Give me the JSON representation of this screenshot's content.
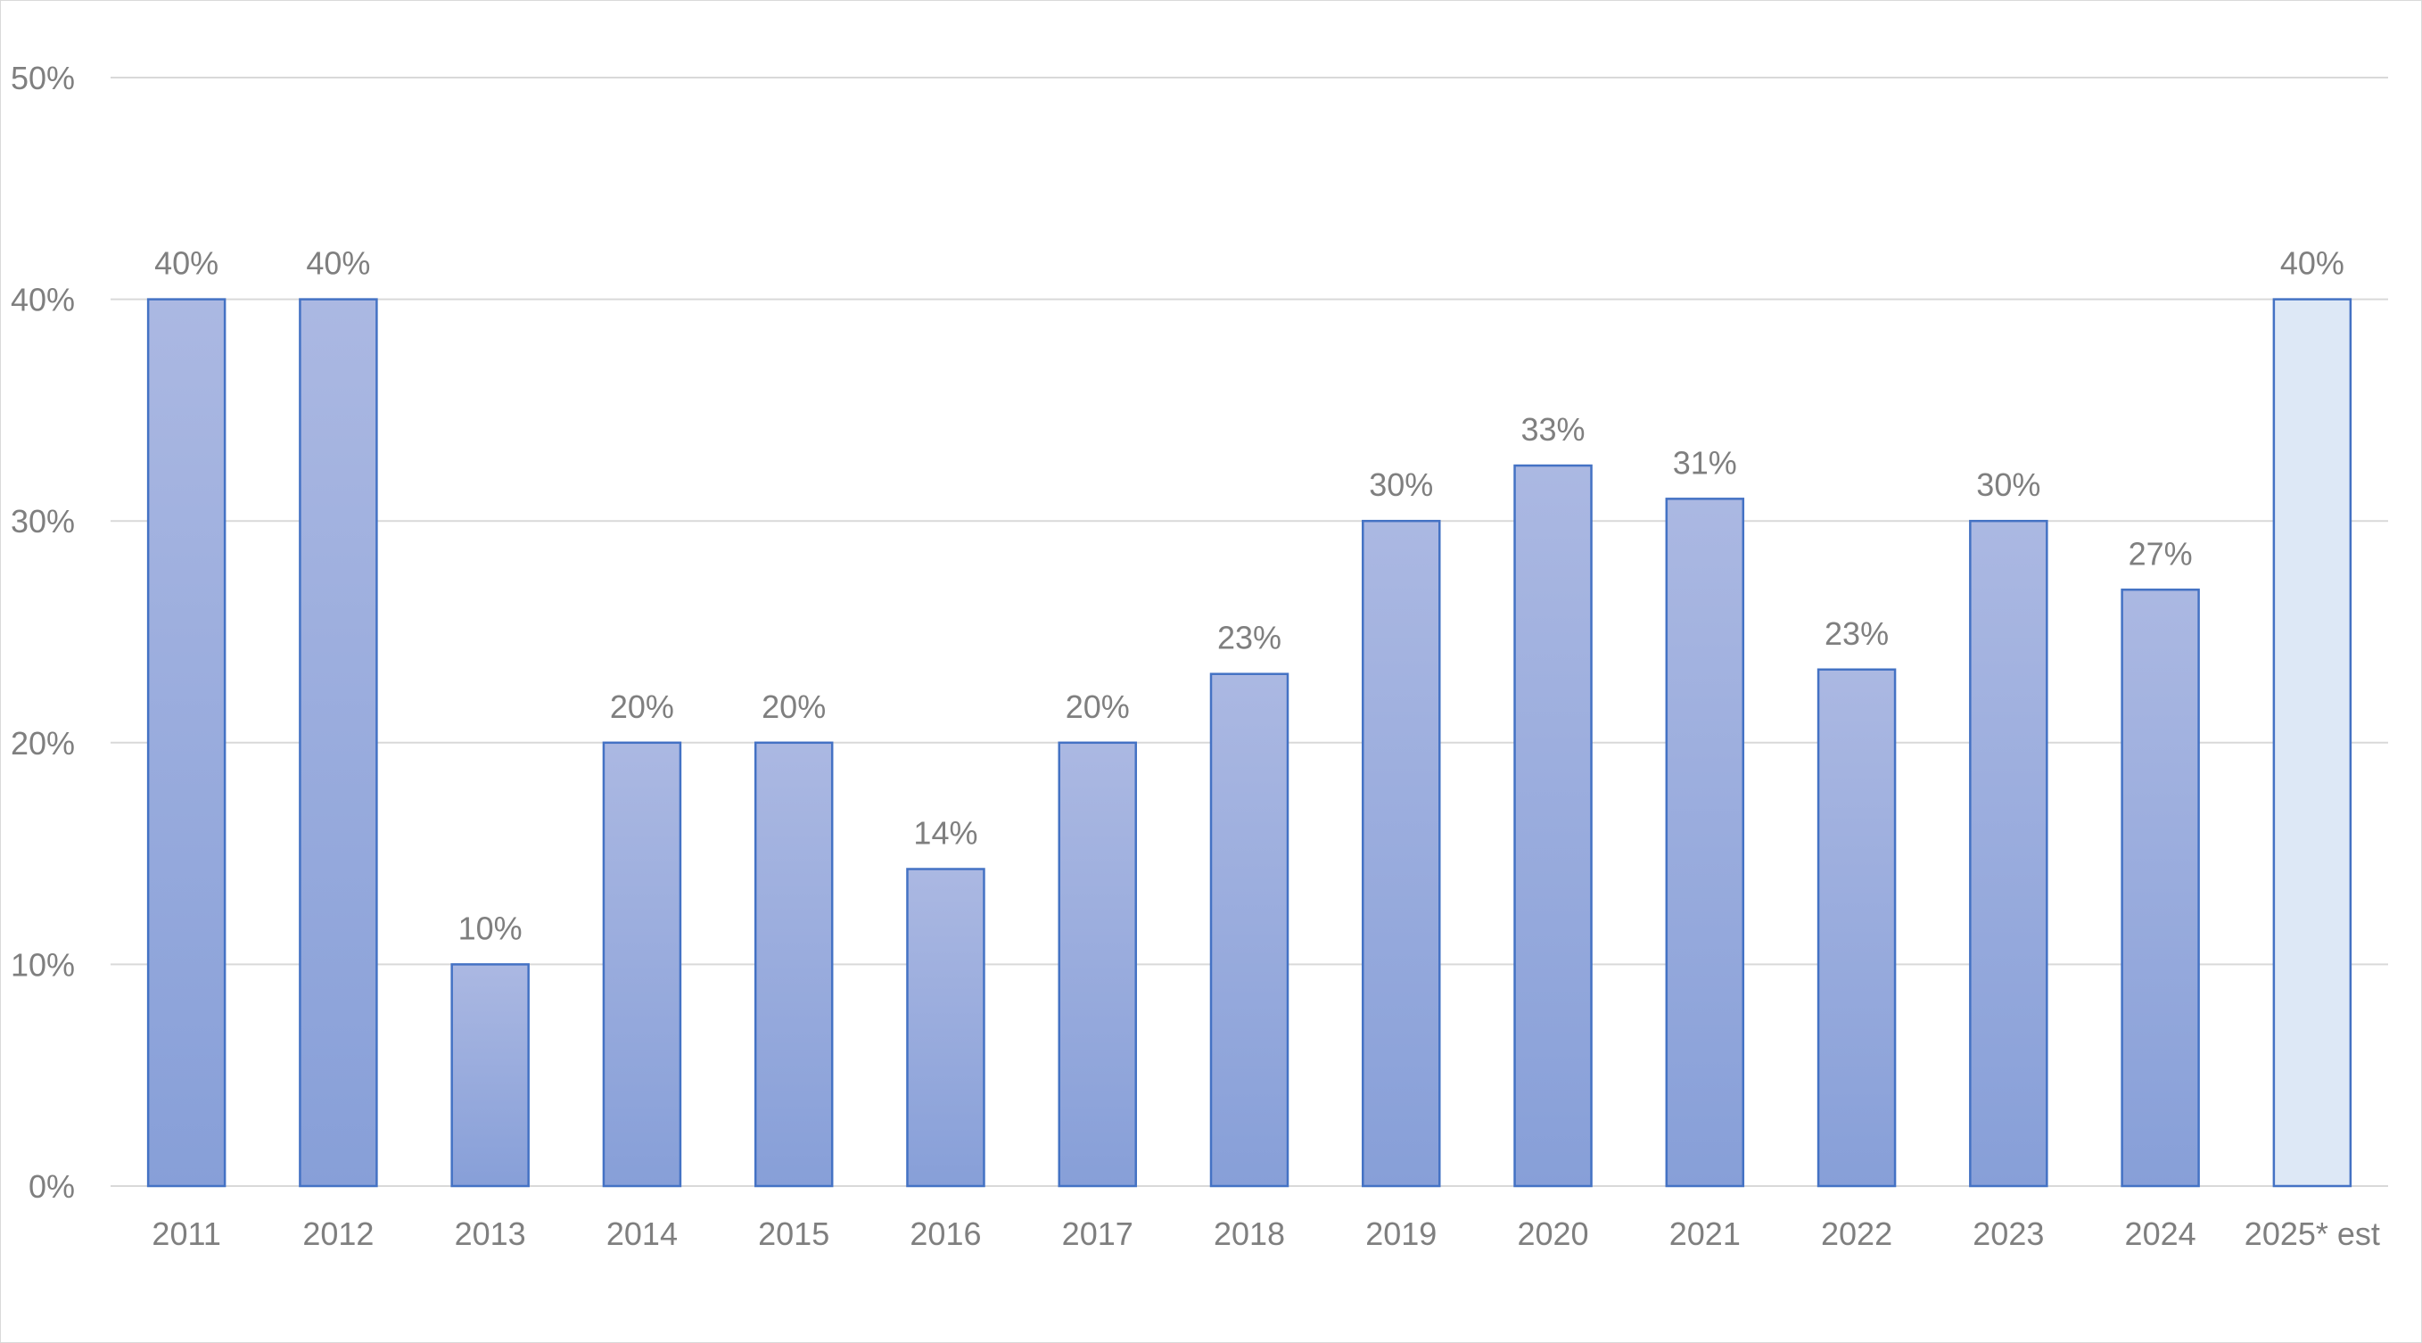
{
  "chart_data": {
    "type": "bar",
    "title": "",
    "xlabel": "",
    "ylabel": "",
    "ylim": [
      0,
      0.5
    ],
    "yticks": [
      0,
      0.1,
      0.2,
      0.3,
      0.4,
      0.5
    ],
    "ytick_labels": [
      "0%",
      "10%",
      "20%",
      "30%",
      "40%",
      "50%"
    ],
    "grid": true,
    "legend": "none",
    "categories": [
      "2011",
      "2012",
      "2013",
      "2014",
      "2015",
      "2016",
      "2017",
      "2018",
      "2019",
      "2020",
      "2021",
      "2022",
      "2023",
      "2024",
      "2025* est"
    ],
    "values": [
      0.4,
      0.4,
      0.1,
      0.2,
      0.2,
      0.143,
      0.2,
      0.231,
      0.3,
      0.325,
      0.31,
      0.233,
      0.3,
      0.269,
      0.4
    ],
    "data_labels": [
      "40%",
      "40%",
      "10%",
      "20%",
      "20%",
      "14%",
      "20%",
      "23%",
      "30%",
      "33%",
      "31%",
      "23%",
      "30%",
      "27%",
      "40%"
    ],
    "estimated": [
      false,
      false,
      false,
      false,
      false,
      false,
      false,
      false,
      false,
      false,
      false,
      false,
      false,
      false,
      true
    ],
    "colors": {
      "bar_top": "#abb8e2",
      "bar_bottom": "#879fd8",
      "bar_border": "#4472c4",
      "estimate_fill": "#dde8f6",
      "gridline": "#d9d9d9",
      "text": "#7f7f7f"
    }
  }
}
